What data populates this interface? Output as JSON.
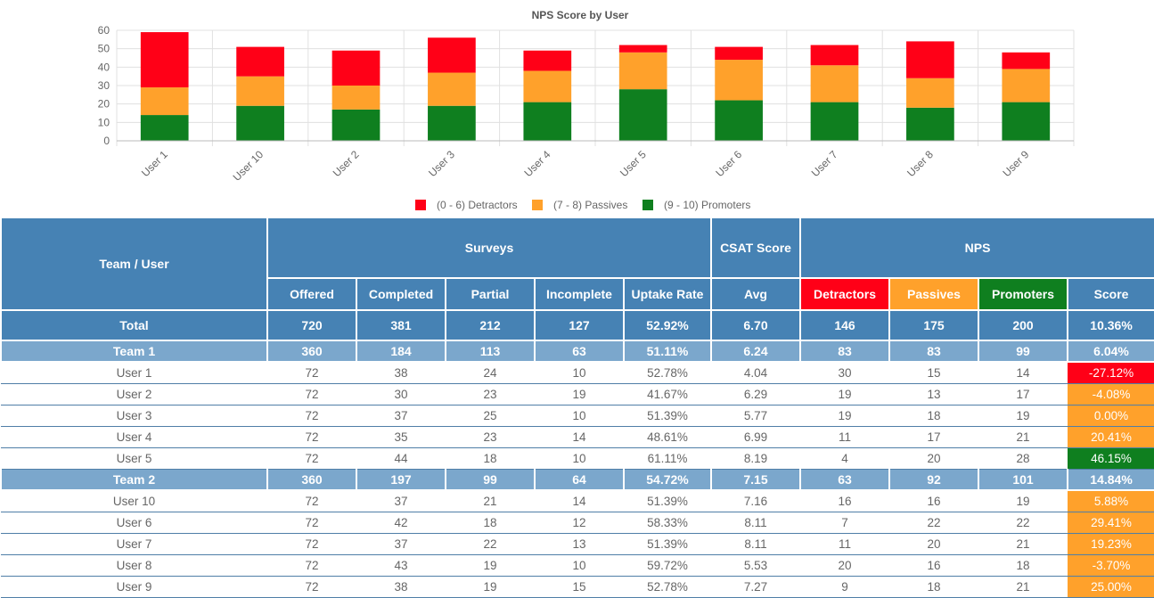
{
  "chart_data": {
    "type": "bar",
    "stacked": true,
    "title": "NPS Score by User",
    "categories": [
      "User 1",
      "User 10",
      "User 2",
      "User 3",
      "User 4",
      "User 5",
      "User 6",
      "User 7",
      "User 8",
      "User 9"
    ],
    "series": [
      {
        "name": "(9 - 10) Promoters",
        "color": "#0f7f1f",
        "values": [
          14,
          19,
          17,
          19,
          21,
          28,
          22,
          21,
          18,
          21
        ]
      },
      {
        "name": "(7 - 8) Passives",
        "color": "#ffa12b",
        "values": [
          15,
          16,
          13,
          18,
          17,
          20,
          22,
          20,
          16,
          18
        ]
      },
      {
        "name": "(0 - 6) Detractors",
        "color": "#ff0017",
        "values": [
          30,
          16,
          19,
          19,
          11,
          4,
          7,
          11,
          20,
          9
        ]
      }
    ],
    "legend_order": [
      "(0 - 6) Detractors",
      "(7 - 8) Passives",
      "(9 - 10) Promoters"
    ],
    "ylim": [
      0,
      60
    ],
    "yticks": [
      0,
      10,
      20,
      30,
      40,
      50,
      60
    ],
    "grid": true,
    "legend_position": "bottom"
  },
  "table": {
    "group_headers": {
      "team_user": "Team / User",
      "surveys": "Surveys",
      "csat": "CSAT Score",
      "nps": "NPS"
    },
    "columns": [
      "Offered",
      "Completed",
      "Partial",
      "Incomplete",
      "Uptake Rate",
      "Avg",
      "Detractors",
      "Passives",
      "Promoters",
      "Score"
    ],
    "header_colors": {
      "detractors": "#ff0017",
      "passives": "#ffa12b",
      "promoters": "#0f7f1f"
    },
    "total": {
      "label": "Total",
      "values": [
        "720",
        "381",
        "212",
        "127",
        "52.92%",
        "6.70",
        "146",
        "175",
        "200",
        "10.36%"
      ]
    },
    "teams": [
      {
        "label": "Team 1",
        "values": [
          "360",
          "184",
          "113",
          "63",
          "51.11%",
          "6.24",
          "83",
          "83",
          "99",
          "6.04%"
        ],
        "users": [
          {
            "name": "User 1",
            "values": [
              "72",
              "38",
              "24",
              "10",
              "52.78%",
              "4.04",
              "30",
              "15",
              "14"
            ],
            "score": "-27.12%",
            "score_color": "#ff0017"
          },
          {
            "name": "User 2",
            "values": [
              "72",
              "30",
              "23",
              "19",
              "41.67%",
              "6.29",
              "19",
              "13",
              "17"
            ],
            "score": "-4.08%",
            "score_color": "#ffa12b"
          },
          {
            "name": "User 3",
            "values": [
              "72",
              "37",
              "25",
              "10",
              "51.39%",
              "5.77",
              "19",
              "18",
              "19"
            ],
            "score": "0.00%",
            "score_color": "#ffa12b"
          },
          {
            "name": "User 4",
            "values": [
              "72",
              "35",
              "23",
              "14",
              "48.61%",
              "6.99",
              "11",
              "17",
              "21"
            ],
            "score": "20.41%",
            "score_color": "#ffa12b"
          },
          {
            "name": "User 5",
            "values": [
              "72",
              "44",
              "18",
              "10",
              "61.11%",
              "8.19",
              "4",
              "20",
              "28"
            ],
            "score": "46.15%",
            "score_color": "#0f7f1f"
          }
        ]
      },
      {
        "label": "Team 2",
        "values": [
          "360",
          "197",
          "99",
          "64",
          "54.72%",
          "7.15",
          "63",
          "92",
          "101",
          "14.84%"
        ],
        "users": [
          {
            "name": "User 10",
            "values": [
              "72",
              "37",
              "21",
              "14",
              "51.39%",
              "7.16",
              "16",
              "16",
              "19"
            ],
            "score": "5.88%",
            "score_color": "#ffa12b"
          },
          {
            "name": "User 6",
            "values": [
              "72",
              "42",
              "18",
              "12",
              "58.33%",
              "8.11",
              "7",
              "22",
              "22"
            ],
            "score": "29.41%",
            "score_color": "#ffa12b"
          },
          {
            "name": "User 7",
            "values": [
              "72",
              "37",
              "22",
              "13",
              "51.39%",
              "8.11",
              "11",
              "20",
              "21"
            ],
            "score": "19.23%",
            "score_color": "#ffa12b"
          },
          {
            "name": "User 8",
            "values": [
              "72",
              "43",
              "19",
              "10",
              "59.72%",
              "5.53",
              "20",
              "16",
              "18"
            ],
            "score": "-3.70%",
            "score_color": "#ffa12b"
          },
          {
            "name": "User 9",
            "values": [
              "72",
              "38",
              "19",
              "15",
              "52.78%",
              "7.27",
              "9",
              "18",
              "21"
            ],
            "score": "25.00%",
            "score_color": "#ffa12b"
          }
        ]
      }
    ]
  }
}
